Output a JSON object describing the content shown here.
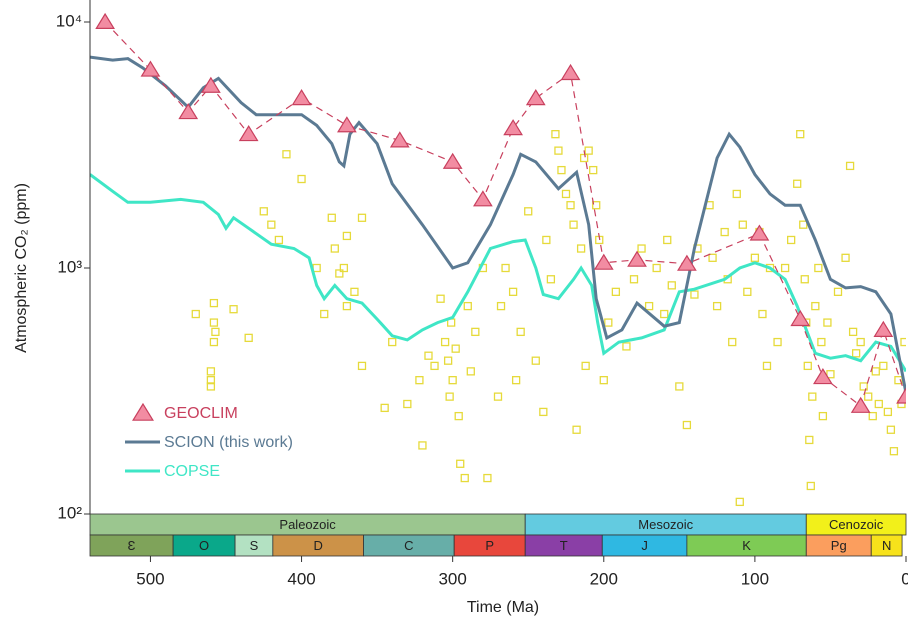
{
  "chart_data": {
    "type": "line",
    "x_label": "Time (Ma)",
    "y_label": "Atmospheric CO₂ (ppm)",
    "xlim": [
      540,
      0
    ],
    "xticks": [
      500,
      400,
      300,
      200,
      100,
      0
    ],
    "ylim": [
      100,
      10000
    ],
    "log_y": true,
    "yticks": [
      {
        "value": 100,
        "label": "10²"
      },
      {
        "value": 1000,
        "label": "10³"
      },
      {
        "value": 10000,
        "label": "10⁴"
      }
    ],
    "legend": "lower-left",
    "series": [
      {
        "name": "GEOCLIM",
        "style": "triangle-dashed",
        "color": "#c8405e",
        "fill": "#f28ca2",
        "x": [
          530,
          500,
          475,
          460,
          435,
          400,
          370,
          335,
          300,
          280,
          260,
          245,
          222,
          200,
          178,
          145,
          97,
          70,
          55,
          30,
          15,
          0
        ],
        "values": [
          10000,
          6400,
          4300,
          5500,
          3500,
          4900,
          3800,
          3300,
          2700,
          1900,
          3700,
          4900,
          6200,
          1050,
          1080,
          1040,
          1380,
          620,
          360,
          275,
          560,
          300
        ]
      },
      {
        "name": "SCION (this work)",
        "style": "line",
        "color": "#5b7a93",
        "x": [
          540,
          525,
          515,
          505,
          490,
          475,
          465,
          455,
          440,
          430,
          400,
          390,
          380,
          375,
          372,
          368,
          362,
          350,
          340,
          320,
          300,
          290,
          275,
          260,
          255,
          245,
          230,
          218,
          210,
          205,
          198,
          188,
          178,
          160,
          150,
          140,
          125,
          117,
          110,
          100,
          90,
          80,
          70,
          60,
          50,
          40,
          30,
          20,
          10,
          0
        ],
        "values": [
          7200,
          7000,
          7100,
          6500,
          5500,
          4500,
          5400,
          5900,
          4700,
          4200,
          4200,
          3800,
          3200,
          2700,
          2600,
          3500,
          3900,
          3200,
          2200,
          1500,
          1000,
          1050,
          1500,
          2400,
          2900,
          2700,
          2100,
          2450,
          1500,
          750,
          520,
          560,
          720,
          580,
          600,
          1200,
          2800,
          3500,
          3100,
          2400,
          2000,
          1800,
          1800,
          1300,
          900,
          830,
          840,
          800,
          650,
          310
        ]
      },
      {
        "name": "COPSE",
        "style": "line",
        "color": "#3fe6c6",
        "x": [
          540,
          525,
          515,
          500,
          480,
          465,
          455,
          450,
          445,
          435,
          420,
          405,
          395,
          390,
          385,
          378,
          370,
          360,
          350,
          340,
          330,
          320,
          310,
          300,
          290,
          275,
          260,
          252,
          245,
          240,
          230,
          220,
          215,
          208,
          204,
          200,
          190,
          175,
          160,
          150,
          140,
          120,
          110,
          100,
          90,
          80,
          72,
          60,
          50,
          40,
          30,
          20,
          10,
          0
        ],
        "values": [
          2400,
          2050,
          1850,
          1850,
          1900,
          1850,
          1650,
          1450,
          1600,
          1450,
          1250,
          1200,
          1100,
          850,
          750,
          850,
          750,
          720,
          620,
          530,
          510,
          560,
          600,
          630,
          800,
          1200,
          1280,
          1300,
          1000,
          780,
          750,
          900,
          1000,
          850,
          600,
          450,
          500,
          520,
          560,
          800,
          820,
          900,
          1000,
          1050,
          1000,
          900,
          700,
          450,
          430,
          440,
          420,
          500,
          480,
          380
        ]
      },
      {
        "style": "square",
        "color": "#e6da3a",
        "x": [
          410,
          400,
          415,
          425,
          420,
          380,
          378,
          375,
          372,
          370,
          365,
          360,
          370,
          390,
          385,
          360,
          470,
          458,
          458,
          457,
          458,
          460,
          460,
          460,
          445,
          435,
          345,
          340,
          330,
          322,
          320,
          316,
          312,
          308,
          305,
          303,
          302,
          301,
          300,
          298,
          296,
          295,
          292,
          290,
          288,
          285,
          280,
          277,
          270,
          268,
          265,
          260,
          258,
          255,
          250,
          245,
          240,
          238,
          235,
          232,
          230,
          228,
          225,
          222,
          220,
          218,
          215,
          213,
          212,
          210,
          207,
          205,
          203,
          200,
          197,
          192,
          185,
          180,
          175,
          170,
          165,
          160,
          158,
          155,
          150,
          145,
          140,
          138,
          130,
          128,
          125,
          120,
          118,
          115,
          112,
          110,
          108,
          105,
          100,
          97,
          95,
          92,
          90,
          85,
          80,
          76,
          72,
          70,
          68,
          67,
          66,
          65,
          64,
          63,
          62,
          60,
          58,
          56,
          55,
          52,
          50,
          45,
          40,
          37,
          35,
          33,
          30,
          28,
          25,
          22,
          20,
          18,
          15,
          12,
          10,
          8,
          5,
          3,
          1
        ],
        "values": [
          2900,
          2300,
          1300,
          1700,
          1500,
          1600,
          1200,
          950,
          1000,
          1350,
          800,
          400,
          700,
          1000,
          650,
          1600,
          650,
          720,
          600,
          550,
          500,
          380,
          350,
          330,
          680,
          520,
          270,
          500,
          280,
          350,
          190,
          440,
          400,
          750,
          500,
          420,
          300,
          600,
          350,
          470,
          250,
          160,
          140,
          700,
          380,
          550,
          1000,
          140,
          300,
          700,
          1000,
          800,
          350,
          550,
          1700,
          420,
          260,
          1300,
          900,
          3500,
          3000,
          2500,
          2000,
          1800,
          1500,
          220,
          1200,
          2800,
          400,
          3000,
          2500,
          1800,
          1300,
          350,
          600,
          800,
          480,
          900,
          1200,
          700,
          1000,
          650,
          1300,
          850,
          330,
          230,
          780,
          1200,
          1800,
          1100,
          700,
          1400,
          900,
          500,
          2000,
          112,
          1500,
          800,
          1100,
          1400,
          650,
          400,
          1000,
          500,
          1000,
          1300,
          2200,
          3500,
          1500,
          900,
          600,
          400,
          200,
          130,
          300,
          700,
          1000,
          500,
          250,
          600,
          370,
          800,
          1100,
          2600,
          550,
          450,
          500,
          330,
          300,
          250,
          380,
          280,
          400,
          260,
          220,
          180,
          350,
          280,
          500
        ]
      }
    ],
    "timescale": {
      "eras": [
        {
          "name": "Paleozoic",
          "start": 541,
          "end": 252,
          "color": "#9bc68f"
        },
        {
          "name": "Mesozoic",
          "start": 252,
          "end": 66,
          "color": "#63cbe0"
        },
        {
          "name": "Cenozoic",
          "start": 66,
          "end": 0,
          "color": "#f2f01a"
        }
      ],
      "periods": [
        {
          "name": "Ɛ",
          "start": 541,
          "end": 485,
          "color": "#7fa35a"
        },
        {
          "name": "O",
          "start": 485,
          "end": 444,
          "color": "#0aa88a"
        },
        {
          "name": "S",
          "start": 444,
          "end": 419,
          "color": "#b3e1c2"
        },
        {
          "name": "D",
          "start": 419,
          "end": 359,
          "color": "#cc9248"
        },
        {
          "name": "C",
          "start": 359,
          "end": 299,
          "color": "#67aea8"
        },
        {
          "name": "P",
          "start": 299,
          "end": 252,
          "color": "#e8473c"
        },
        {
          "name": "T",
          "start": 252,
          "end": 201,
          "color": "#8a3fa6"
        },
        {
          "name": "J",
          "start": 201,
          "end": 145,
          "color": "#2fb8e2"
        },
        {
          "name": "K",
          "start": 145,
          "end": 66,
          "color": "#7ecb55"
        },
        {
          "name": "Pg",
          "start": 66,
          "end": 23,
          "color": "#fb9e5e"
        },
        {
          "name": "N",
          "start": 23,
          "end": 2.6,
          "color": "#f7e21b"
        }
      ]
    }
  }
}
